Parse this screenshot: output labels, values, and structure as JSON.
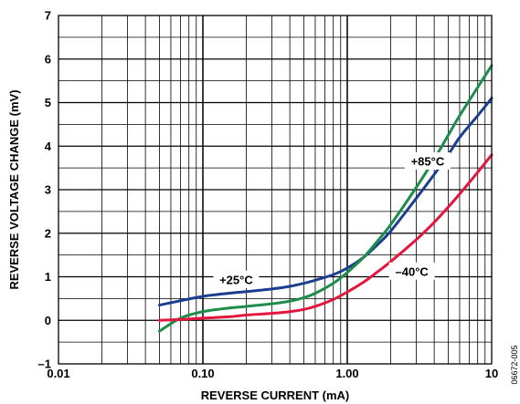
{
  "chart_data": {
    "type": "line",
    "xlabel": "REVERSE CURRENT (mA)",
    "ylabel": "REVERSE VOLTAGE CHANGE (mV)",
    "x_scale": "log",
    "xlim": [
      0.01,
      10
    ],
    "ylim": [
      -1,
      7
    ],
    "grid": true,
    "x_ticks": [
      "0.01",
      "0.10",
      "1.00",
      "10"
    ],
    "y_ticks": [
      "–1",
      "0",
      "1",
      "2",
      "3",
      "4",
      "5",
      "6",
      "7"
    ],
    "series": [
      {
        "name": "+25°C",
        "color": "#1a3f8f",
        "x": [
          0.05,
          0.07,
          0.1,
          0.15,
          0.2,
          0.3,
          0.4,
          0.5,
          0.6,
          0.8,
          1.0,
          1.3,
          1.6,
          2.0,
          3.0,
          4.0,
          5.0,
          6.0,
          8.0,
          10.0
        ],
        "y": [
          0.35,
          0.45,
          0.55,
          0.62,
          0.66,
          0.72,
          0.78,
          0.85,
          0.92,
          1.05,
          1.2,
          1.45,
          1.72,
          2.05,
          2.8,
          3.35,
          3.8,
          4.2,
          4.7,
          5.1
        ]
      },
      {
        "name": "+85°C",
        "color": "#1e8c4a",
        "x": [
          0.05,
          0.07,
          0.1,
          0.15,
          0.2,
          0.3,
          0.4,
          0.5,
          0.6,
          0.8,
          1.0,
          1.3,
          1.6,
          2.0,
          3.0,
          4.0,
          5.0,
          6.0,
          8.0,
          10.0
        ],
        "y": [
          -0.25,
          0.05,
          0.2,
          0.28,
          0.32,
          0.38,
          0.44,
          0.52,
          0.62,
          0.85,
          1.1,
          1.45,
          1.8,
          2.2,
          3.05,
          3.7,
          4.25,
          4.7,
          5.35,
          5.85
        ]
      },
      {
        "name": "–40°C",
        "color": "#e3173e",
        "x": [
          0.05,
          0.07,
          0.1,
          0.15,
          0.2,
          0.3,
          0.4,
          0.5,
          0.6,
          0.8,
          1.0,
          1.3,
          1.6,
          2.0,
          3.0,
          4.0,
          5.0,
          6.0,
          8.0,
          10.0
        ],
        "y": [
          0.0,
          0.02,
          0.05,
          0.08,
          0.12,
          0.16,
          0.2,
          0.25,
          0.32,
          0.48,
          0.65,
          0.88,
          1.1,
          1.35,
          1.85,
          2.25,
          2.6,
          2.9,
          3.4,
          3.8
        ]
      }
    ],
    "annotations": [
      {
        "text": "+25°C",
        "x": 0.17,
        "y": 0.93
      },
      {
        "text": "+85°C",
        "x": 3.6,
        "y": 3.65
      },
      {
        "text": "–40°C",
        "x": 2.8,
        "y": 1.12
      }
    ],
    "figure_id": "06672-005"
  }
}
